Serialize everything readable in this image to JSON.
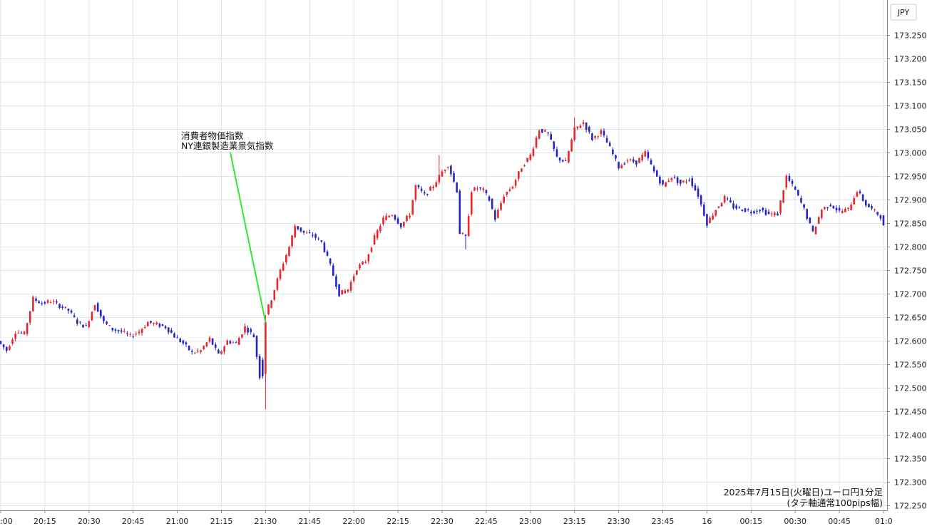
{
  "chart_data": {
    "type": "candlestick",
    "currency_label": "JPY",
    "caption_line1": "2025年7月15日(火曜日)ユーロ円1分足",
    "caption_line2": "(タテ軸通常100pips幅)",
    "annotation": {
      "line1": "消費者物価指数",
      "line2": "NY連銀製造業景気指数",
      "time": "21:30",
      "price": 172.64
    },
    "ylim": [
      172.225,
      173.275
    ],
    "y_ticks": [
      "173.250",
      "173.200",
      "173.150",
      "173.100",
      "173.050",
      "173.000",
      "172.950",
      "172.900",
      "172.850",
      "172.800",
      "172.750",
      "172.700",
      "172.650",
      "172.600",
      "172.550",
      "172.500",
      "172.450",
      "172.400",
      "172.350",
      "172.300",
      "172.250"
    ],
    "x_ticks": [
      ":00",
      "20:15",
      "20:30",
      "20:45",
      "21:00",
      "21:15",
      "21:30",
      "21:45",
      "22:00",
      "22:15",
      "22:30",
      "22:45",
      "23:00",
      "23:15",
      "23:30",
      "23:45",
      "16",
      "00:15",
      "00:30",
      "00:45",
      "01:0"
    ],
    "colors": {
      "up": "#e8262c",
      "down": "#2424c8",
      "grid": "#dce6ee",
      "annotation_line": "#32e632",
      "axis": "#888888"
    },
    "series_anchors": [
      {
        "t": "20:00",
        "p": 172.6
      },
      {
        "t": "20:03",
        "p": 172.58
      },
      {
        "t": "20:06",
        "p": 172.62
      },
      {
        "t": "20:09",
        "p": 172.615
      },
      {
        "t": "20:12",
        "p": 172.69
      },
      {
        "t": "20:15",
        "p": 172.68
      },
      {
        "t": "20:18",
        "p": 172.685
      },
      {
        "t": "20:21",
        "p": 172.675
      },
      {
        "t": "20:24",
        "p": 172.665
      },
      {
        "t": "20:27",
        "p": 172.64
      },
      {
        "t": "20:30",
        "p": 172.63
      },
      {
        "t": "20:33",
        "p": 172.68
      },
      {
        "t": "20:36",
        "p": 172.64
      },
      {
        "t": "20:39",
        "p": 172.625
      },
      {
        "t": "20:42",
        "p": 172.62
      },
      {
        "t": "20:45",
        "p": 172.61
      },
      {
        "t": "20:48",
        "p": 172.62
      },
      {
        "t": "20:51",
        "p": 172.64
      },
      {
        "t": "20:54",
        "p": 172.635
      },
      {
        "t": "20:57",
        "p": 172.63
      },
      {
        "t": "21:00",
        "p": 172.61
      },
      {
        "t": "21:03",
        "p": 172.595
      },
      {
        "t": "21:06",
        "p": 172.575
      },
      {
        "t": "21:09",
        "p": 172.58
      },
      {
        "t": "21:12",
        "p": 172.605
      },
      {
        "t": "21:15",
        "p": 172.57
      },
      {
        "t": "21:18",
        "p": 172.6
      },
      {
        "t": "21:21",
        "p": 172.595
      },
      {
        "t": "21:24",
        "p": 172.63
      },
      {
        "t": "21:27",
        "p": 172.61
      },
      {
        "t": "21:29",
        "p": 172.525
      },
      {
        "t": "21:30",
        "p": 172.64
      },
      {
        "t": "21:33",
        "p": 172.69
      },
      {
        "t": "21:36",
        "p": 172.75
      },
      {
        "t": "21:39",
        "p": 172.8
      },
      {
        "t": "21:41",
        "p": 172.845
      },
      {
        "t": "21:44",
        "p": 172.83
      },
      {
        "t": "21:47",
        "p": 172.825
      },
      {
        "t": "21:50",
        "p": 172.81
      },
      {
        "t": "21:53",
        "p": 172.76
      },
      {
        "t": "21:56",
        "p": 172.7
      },
      {
        "t": "21:59",
        "p": 172.71
      },
      {
        "t": "22:02",
        "p": 172.755
      },
      {
        "t": "22:05",
        "p": 172.77
      },
      {
        "t": "22:08",
        "p": 172.82
      },
      {
        "t": "22:11",
        "p": 172.86
      },
      {
        "t": "22:14",
        "p": 172.87
      },
      {
        "t": "22:17",
        "p": 172.845
      },
      {
        "t": "22:20",
        "p": 172.87
      },
      {
        "t": "22:22",
        "p": 172.93
      },
      {
        "t": "22:25",
        "p": 172.91
      },
      {
        "t": "22:28",
        "p": 172.93
      },
      {
        "t": "22:31",
        "p": 172.96
      },
      {
        "t": "22:33",
        "p": 172.975
      },
      {
        "t": "22:36",
        "p": 172.92
      },
      {
        "t": "22:37",
        "p": 172.83
      },
      {
        "t": "22:39",
        "p": 172.82
      },
      {
        "t": "22:41",
        "p": 172.92
      },
      {
        "t": "22:43",
        "p": 172.925
      },
      {
        "t": "22:45",
        "p": 172.92
      },
      {
        "t": "22:47",
        "p": 172.9
      },
      {
        "t": "22:49",
        "p": 172.86
      },
      {
        "t": "22:52",
        "p": 172.91
      },
      {
        "t": "22:55",
        "p": 172.93
      },
      {
        "t": "22:58",
        "p": 172.97
      },
      {
        "t": "23:01",
        "p": 172.995
      },
      {
        "t": "23:04",
        "p": 173.05
      },
      {
        "t": "23:07",
        "p": 173.04
      },
      {
        "t": "23:10",
        "p": 172.99
      },
      {
        "t": "23:13",
        "p": 172.98
      },
      {
        "t": "23:16",
        "p": 173.05
      },
      {
        "t": "23:19",
        "p": 173.065
      },
      {
        "t": "23:22",
        "p": 173.03
      },
      {
        "t": "23:25",
        "p": 173.045
      },
      {
        "t": "23:28",
        "p": 173.01
      },
      {
        "t": "23:31",
        "p": 172.97
      },
      {
        "t": "23:34",
        "p": 172.985
      },
      {
        "t": "23:37",
        "p": 172.98
      },
      {
        "t": "23:40",
        "p": 173.0
      },
      {
        "t": "23:43",
        "p": 172.96
      },
      {
        "t": "23:46",
        "p": 172.93
      },
      {
        "t": "23:49",
        "p": 172.95
      },
      {
        "t": "23:52",
        "p": 172.935
      },
      {
        "t": "23:55",
        "p": 172.945
      },
      {
        "t": "23:58",
        "p": 172.91
      },
      {
        "t": "00:01",
        "p": 172.85
      },
      {
        "t": "00:04",
        "p": 172.88
      },
      {
        "t": "00:07",
        "p": 172.905
      },
      {
        "t": "00:10",
        "p": 172.885
      },
      {
        "t": "00:13",
        "p": 172.88
      },
      {
        "t": "00:16",
        "p": 172.875
      },
      {
        "t": "00:19",
        "p": 172.88
      },
      {
        "t": "00:22",
        "p": 172.87
      },
      {
        "t": "00:25",
        "p": 172.87
      },
      {
        "t": "00:28",
        "p": 172.95
      },
      {
        "t": "00:31",
        "p": 172.92
      },
      {
        "t": "00:34",
        "p": 172.88
      },
      {
        "t": "00:37",
        "p": 172.83
      },
      {
        "t": "00:40",
        "p": 172.88
      },
      {
        "t": "00:43",
        "p": 172.89
      },
      {
        "t": "00:46",
        "p": 172.875
      },
      {
        "t": "00:49",
        "p": 172.88
      },
      {
        "t": "00:52",
        "p": 172.92
      },
      {
        "t": "00:55",
        "p": 172.89
      },
      {
        "t": "00:58",
        "p": 172.875
      },
      {
        "t": "01:00",
        "p": 172.865
      },
      {
        "t": "01:02",
        "p": 172.82
      }
    ]
  }
}
